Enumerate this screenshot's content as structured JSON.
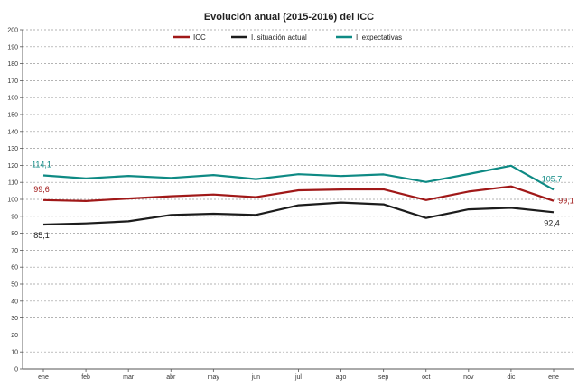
{
  "chart_data": {
    "type": "line",
    "title": "Evolución anual (2015-2016) del ICC",
    "categories": [
      "ene",
      "feb",
      "mar",
      "abr",
      "may",
      "jun",
      "jul",
      "ago",
      "sep",
      "oct",
      "nov",
      "dic",
      "ene"
    ],
    "ylim": [
      0,
      200
    ],
    "ytick_step": 10,
    "y_ticks": [
      "0",
      "10",
      "20",
      "30",
      "40",
      "50",
      "60",
      "70",
      "80",
      "90",
      "100",
      "110",
      "120",
      "130",
      "140",
      "150",
      "160",
      "170",
      "180",
      "190",
      "200"
    ],
    "grid": true,
    "legend_position": "top",
    "series": [
      {
        "name": "ICC",
        "color": "#a01818",
        "values": [
          99.6,
          99.0,
          100.5,
          101.8,
          102.8,
          101.3,
          105.3,
          105.8,
          105.9,
          99.6,
          104.6,
          107.6,
          99.1
        ]
      },
      {
        "name": "I. situación actual",
        "color": "#1c1c1c",
        "values": [
          85.1,
          85.8,
          87.0,
          90.8,
          91.5,
          90.8,
          96.5,
          98.1,
          97.0,
          89.0,
          94.1,
          95.0,
          92.4
        ]
      },
      {
        "name": "I. expectativas",
        "color": "#0e8a84",
        "values": [
          114.1,
          112.3,
          113.8,
          112.6,
          114.3,
          111.9,
          114.8,
          113.7,
          114.7,
          110.2,
          114.9,
          119.8,
          105.7
        ]
      }
    ],
    "data_labels": [
      {
        "series": 2,
        "index": 0,
        "text": "114,1",
        "color": "#0e8a84"
      },
      {
        "series": 0,
        "index": 0,
        "text": "99,6",
        "color": "#a01818"
      },
      {
        "series": 1,
        "index": 0,
        "text": "85,1",
        "color": "#1c1c1c"
      },
      {
        "series": 2,
        "index": 12,
        "text": "105,7",
        "color": "#0e8a84"
      },
      {
        "series": 0,
        "index": 12,
        "text": "99,1",
        "color": "#a01818"
      },
      {
        "series": 1,
        "index": 12,
        "text": "92,4",
        "color": "#1c1c1c"
      }
    ]
  }
}
